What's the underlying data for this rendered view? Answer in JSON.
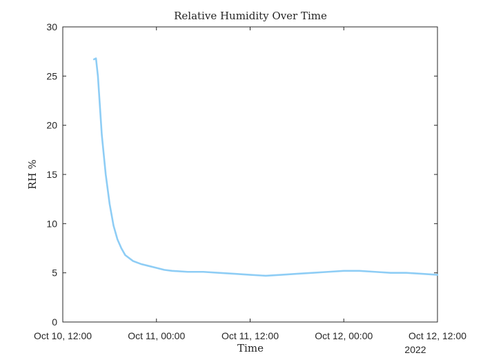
{
  "chart_data": {
    "type": "line",
    "title": "Relative Humidity Over Time",
    "xlabel": "Time",
    "ylabel": "RH %",
    "x_secondary_label": "2022",
    "xlim": [
      "2022-10-10 12:00",
      "2022-10-12 12:00"
    ],
    "ylim": [
      0,
      30
    ],
    "xticks": [
      {
        "value": "2022-10-10 12:00",
        "label": "Oct 10, 12:00"
      },
      {
        "value": "2022-10-11 00:00",
        "label": "Oct 11, 00:00"
      },
      {
        "value": "2022-10-11 12:00",
        "label": "Oct 11, 12:00"
      },
      {
        "value": "2022-10-12 00:00",
        "label": "Oct 12, 00:00"
      },
      {
        "value": "2022-10-12 12:00",
        "label": "Oct 12, 12:00"
      }
    ],
    "yticks": [
      0,
      5,
      10,
      15,
      20,
      25,
      30
    ],
    "grid": false,
    "line_color": "#8ecdf5",
    "series": [
      {
        "x": [
          "2022-10-10 16:00",
          "2022-10-10 16:15",
          "2022-10-10 16:30",
          "2022-10-10 16:45",
          "2022-10-10 17:00",
          "2022-10-10 17:30",
          "2022-10-10 18:00",
          "2022-10-10 18:30",
          "2022-10-10 19:00",
          "2022-10-10 19:30",
          "2022-10-10 20:00",
          "2022-10-10 21:00",
          "2022-10-10 22:00",
          "2022-10-10 23:00",
          "2022-10-11 00:00",
          "2022-10-11 01:00",
          "2022-10-11 02:00",
          "2022-10-11 04:00",
          "2022-10-11 06:00",
          "2022-10-11 08:00",
          "2022-10-11 10:00",
          "2022-10-11 12:00",
          "2022-10-11 14:00",
          "2022-10-11 16:00",
          "2022-10-11 18:00",
          "2022-10-11 20:00",
          "2022-10-11 22:00",
          "2022-10-12 00:00",
          "2022-10-12 02:00",
          "2022-10-12 04:00",
          "2022-10-12 06:00",
          "2022-10-12 08:00",
          "2022-10-12 10:00",
          "2022-10-12 12:00"
        ],
        "values": [
          26.7,
          26.8,
          25.0,
          22.0,
          19.0,
          15.0,
          12.0,
          9.8,
          8.4,
          7.5,
          6.8,
          6.2,
          5.9,
          5.7,
          5.5,
          5.3,
          5.2,
          5.1,
          5.1,
          5.0,
          4.9,
          4.8,
          4.7,
          4.8,
          4.9,
          5.0,
          5.1,
          5.2,
          5.2,
          5.1,
          5.0,
          5.0,
          4.9,
          4.8
        ]
      }
    ]
  }
}
